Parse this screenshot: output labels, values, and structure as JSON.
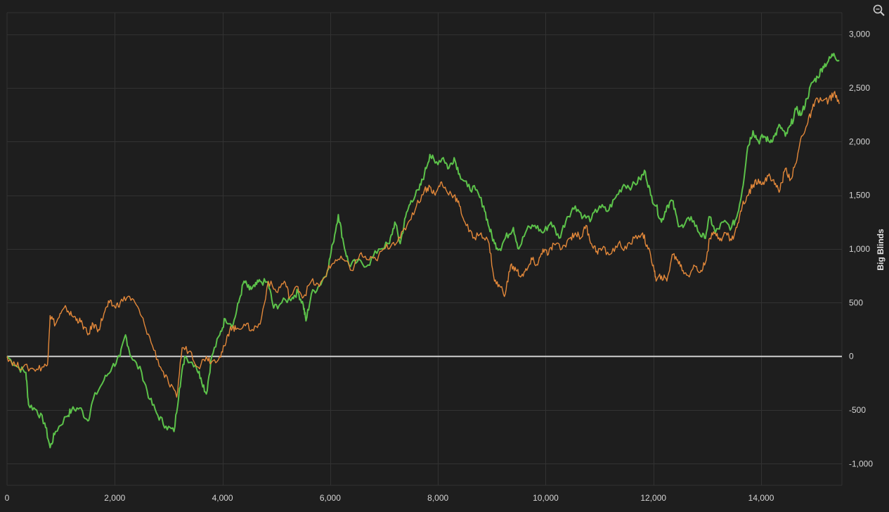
{
  "chart_data": {
    "type": "line",
    "title": "",
    "xlabel": "",
    "ylabel": "Big Blinds",
    "xlim": [
      0,
      15500
    ],
    "ylim": [
      -1200,
      3200
    ],
    "x_ticks": [
      0,
      2000,
      4000,
      6000,
      8000,
      10000,
      12000,
      14000
    ],
    "x_tick_labels": [
      "0",
      "2,000",
      "4,000",
      "6,000",
      "8,000",
      "10,000",
      "12,000",
      "14,000"
    ],
    "y_ticks": [
      3000,
      2500,
      2000,
      1500,
      1000,
      500,
      0,
      -500,
      -1000
    ],
    "y_tick_labels": [
      "3,000",
      "2,500",
      "2,000",
      "1,500",
      "1,000",
      "500",
      "0",
      "-500",
      "-1,000"
    ],
    "grid": true,
    "zero_line": true,
    "series": [
      {
        "name": "",
        "color": "#5cc24a",
        "points": [
          [
            0,
            0
          ],
          [
            200,
            -100
          ],
          [
            350,
            -150
          ],
          [
            400,
            -450
          ],
          [
            550,
            -500
          ],
          [
            700,
            -620
          ],
          [
            800,
            -850
          ],
          [
            900,
            -700
          ],
          [
            1100,
            -560
          ],
          [
            1200,
            -500
          ],
          [
            1350,
            -480
          ],
          [
            1500,
            -600
          ],
          [
            1600,
            -400
          ],
          [
            1800,
            -220
          ],
          [
            1950,
            -100
          ],
          [
            2100,
            0
          ],
          [
            2200,
            200
          ],
          [
            2300,
            0
          ],
          [
            2500,
            -150
          ],
          [
            2650,
            -400
          ],
          [
            2800,
            -550
          ],
          [
            2950,
            -650
          ],
          [
            3100,
            -700
          ],
          [
            3200,
            -300
          ],
          [
            3300,
            0
          ],
          [
            3500,
            -80
          ],
          [
            3600,
            -200
          ],
          [
            3700,
            -350
          ],
          [
            3800,
            0
          ],
          [
            3950,
            200
          ],
          [
            4050,
            350
          ],
          [
            4200,
            300
          ],
          [
            4300,
            500
          ],
          [
            4400,
            700
          ],
          [
            4500,
            620
          ],
          [
            4600,
            650
          ],
          [
            4700,
            700
          ],
          [
            4850,
            680
          ],
          [
            4950,
            450
          ],
          [
            5100,
            500
          ],
          [
            5300,
            550
          ],
          [
            5400,
            600
          ],
          [
            5500,
            480
          ],
          [
            5550,
            330
          ],
          [
            5650,
            580
          ],
          [
            5800,
            660
          ],
          [
            5950,
            800
          ],
          [
            6050,
            1050
          ],
          [
            6150,
            1320
          ],
          [
            6250,
            1050
          ],
          [
            6350,
            850
          ],
          [
            6500,
            880
          ],
          [
            6700,
            850
          ],
          [
            6900,
            1000
          ],
          [
            7100,
            1050
          ],
          [
            7200,
            1250
          ],
          [
            7300,
            1050
          ],
          [
            7400,
            1300
          ],
          [
            7500,
            1450
          ],
          [
            7650,
            1550
          ],
          [
            7750,
            1700
          ],
          [
            7850,
            1880
          ],
          [
            7950,
            1800
          ],
          [
            8100,
            1850
          ],
          [
            8200,
            1750
          ],
          [
            8300,
            1850
          ],
          [
            8400,
            1700
          ],
          [
            8550,
            1580
          ],
          [
            8700,
            1550
          ],
          [
            8850,
            1400
          ],
          [
            8950,
            1200
          ],
          [
            9050,
            1050
          ],
          [
            9150,
            1000
          ],
          [
            9250,
            1100
          ],
          [
            9400,
            1200
          ],
          [
            9500,
            1000
          ],
          [
            9650,
            1180
          ],
          [
            9800,
            1220
          ],
          [
            9950,
            1150
          ],
          [
            10100,
            1250
          ],
          [
            10250,
            1100
          ],
          [
            10400,
            1300
          ],
          [
            10550,
            1400
          ],
          [
            10700,
            1300
          ],
          [
            10850,
            1280
          ],
          [
            11000,
            1400
          ],
          [
            11150,
            1350
          ],
          [
            11300,
            1480
          ],
          [
            11450,
            1600
          ],
          [
            11600,
            1580
          ],
          [
            11750,
            1650
          ],
          [
            11850,
            1720
          ],
          [
            11950,
            1500
          ],
          [
            12050,
            1400
          ],
          [
            12150,
            1250
          ],
          [
            12250,
            1400
          ],
          [
            12350,
            1450
          ],
          [
            12450,
            1250
          ],
          [
            12550,
            1200
          ],
          [
            12700,
            1300
          ],
          [
            12850,
            1150
          ],
          [
            12950,
            1100
          ],
          [
            13050,
            1300
          ],
          [
            13150,
            1150
          ],
          [
            13300,
            1250
          ],
          [
            13450,
            1200
          ],
          [
            13550,
            1300
          ],
          [
            13650,
            1550
          ],
          [
            13750,
            1950
          ],
          [
            13850,
            2100
          ],
          [
            13950,
            2000
          ],
          [
            14050,
            2050
          ],
          [
            14150,
            2000
          ],
          [
            14250,
            2050
          ],
          [
            14350,
            2150
          ],
          [
            14450,
            2050
          ],
          [
            14550,
            2150
          ],
          [
            14650,
            2300
          ],
          [
            14750,
            2250
          ],
          [
            14850,
            2400
          ],
          [
            14950,
            2550
          ],
          [
            15050,
            2600
          ],
          [
            15150,
            2700
          ],
          [
            15250,
            2750
          ],
          [
            15350,
            2820
          ],
          [
            15450,
            2750
          ]
        ]
      },
      {
        "name": "",
        "color": "#e3883a",
        "points": [
          [
            0,
            0
          ],
          [
            150,
            -80
          ],
          [
            300,
            -100
          ],
          [
            500,
            -120
          ],
          [
            650,
            -100
          ],
          [
            750,
            -80
          ],
          [
            800,
            380
          ],
          [
            900,
            300
          ],
          [
            1000,
            400
          ],
          [
            1100,
            450
          ],
          [
            1200,
            380
          ],
          [
            1300,
            350
          ],
          [
            1400,
            300
          ],
          [
            1500,
            200
          ],
          [
            1600,
            300
          ],
          [
            1700,
            250
          ],
          [
            1800,
            400
          ],
          [
            1900,
            500
          ],
          [
            2000,
            460
          ],
          [
            2100,
            500
          ],
          [
            2250,
            560
          ],
          [
            2400,
            480
          ],
          [
            2550,
            300
          ],
          [
            2700,
            100
          ],
          [
            2850,
            -100
          ],
          [
            3000,
            -250
          ],
          [
            3150,
            -380
          ],
          [
            3250,
            80
          ],
          [
            3400,
            50
          ],
          [
            3550,
            -100
          ],
          [
            3700,
            0
          ],
          [
            3800,
            -50
          ],
          [
            3950,
            0
          ],
          [
            4050,
            100
          ],
          [
            4150,
            280
          ],
          [
            4250,
            250
          ],
          [
            4400,
            300
          ],
          [
            4550,
            250
          ],
          [
            4700,
            300
          ],
          [
            4850,
            700
          ],
          [
            5000,
            600
          ],
          [
            5150,
            700
          ],
          [
            5250,
            550
          ],
          [
            5400,
            650
          ],
          [
            5500,
            550
          ],
          [
            5650,
            700
          ],
          [
            5800,
            650
          ],
          [
            5950,
            800
          ],
          [
            6100,
            900
          ],
          [
            6250,
            900
          ],
          [
            6400,
            800
          ],
          [
            6550,
            950
          ],
          [
            6700,
            900
          ],
          [
            6850,
            900
          ],
          [
            7000,
            1000
          ],
          [
            7150,
            1050
          ],
          [
            7300,
            1100
          ],
          [
            7450,
            1250
          ],
          [
            7600,
            1400
          ],
          [
            7750,
            1550
          ],
          [
            7850,
            1580
          ],
          [
            7950,
            1500
          ],
          [
            8050,
            1620
          ],
          [
            8150,
            1550
          ],
          [
            8300,
            1500
          ],
          [
            8400,
            1400
          ],
          [
            8500,
            1250
          ],
          [
            8650,
            1100
          ],
          [
            8800,
            1150
          ],
          [
            8950,
            1050
          ],
          [
            9050,
            700
          ],
          [
            9150,
            650
          ],
          [
            9250,
            580
          ],
          [
            9350,
            850
          ],
          [
            9450,
            800
          ],
          [
            9550,
            750
          ],
          [
            9650,
            800
          ],
          [
            9750,
            900
          ],
          [
            9850,
            850
          ],
          [
            9950,
            1000
          ],
          [
            10050,
            950
          ],
          [
            10150,
            1050
          ],
          [
            10300,
            1000
          ],
          [
            10450,
            1100
          ],
          [
            10550,
            1150
          ],
          [
            10650,
            1100
          ],
          [
            10750,
            1220
          ],
          [
            10850,
            1050
          ],
          [
            10950,
            980
          ],
          [
            11050,
            1000
          ],
          [
            11200,
            950
          ],
          [
            11350,
            1050
          ],
          [
            11500,
            1000
          ],
          [
            11650,
            1100
          ],
          [
            11800,
            1150
          ],
          [
            11900,
            1000
          ],
          [
            12000,
            850
          ],
          [
            12050,
            700
          ],
          [
            12150,
            750
          ],
          [
            12250,
            700
          ],
          [
            12350,
            950
          ],
          [
            12450,
            900
          ],
          [
            12550,
            800
          ],
          [
            12650,
            750
          ],
          [
            12750,
            850
          ],
          [
            12850,
            780
          ],
          [
            12950,
            850
          ],
          [
            13050,
            1100
          ],
          [
            13150,
            1150
          ],
          [
            13250,
            1100
          ],
          [
            13350,
            1150
          ],
          [
            13450,
            1080
          ],
          [
            13550,
            1200
          ],
          [
            13650,
            1400
          ],
          [
            13750,
            1500
          ],
          [
            13850,
            1600
          ],
          [
            13950,
            1650
          ],
          [
            14050,
            1600
          ],
          [
            14150,
            1700
          ],
          [
            14250,
            1600
          ],
          [
            14350,
            1550
          ],
          [
            14450,
            1750
          ],
          [
            14550,
            1650
          ],
          [
            14650,
            1800
          ],
          [
            14750,
            2050
          ],
          [
            14850,
            2150
          ],
          [
            14950,
            2300
          ],
          [
            15050,
            2400
          ],
          [
            15150,
            2380
          ],
          [
            15250,
            2380
          ],
          [
            15350,
            2450
          ],
          [
            15450,
            2350
          ]
        ]
      }
    ],
    "colors": {
      "background": "#1e1e1e",
      "grid": "#323232",
      "zero_line": "#cfcfcf",
      "tick_text": "#d4d4d4"
    }
  },
  "toolbar": {
    "zoom_icon": "zoom-icon"
  }
}
